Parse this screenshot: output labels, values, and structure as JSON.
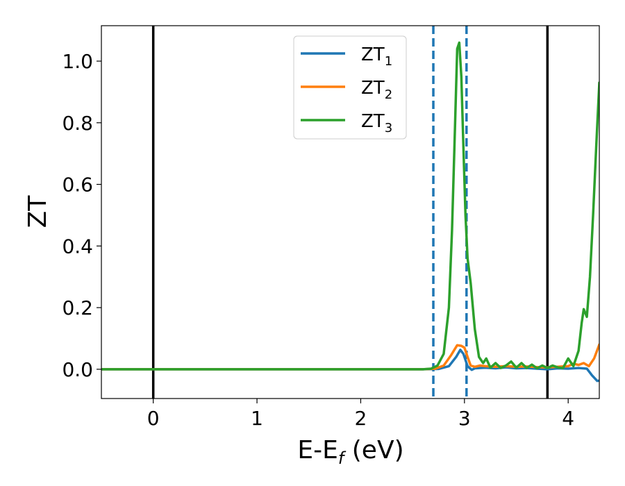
{
  "chart_data": {
    "type": "line",
    "title": "",
    "xlabel": "E-E_f (eV)",
    "ylabel": "ZT",
    "xlabel_parts": {
      "main": "E-E",
      "sub": "f",
      "tail": " (eV)"
    },
    "xlim": [
      -0.5,
      4.3
    ],
    "ylim": [
      -0.095,
      1.115
    ],
    "xticks": [
      0,
      1,
      2,
      3,
      4
    ],
    "xtick_labels": [
      "0",
      "1",
      "2",
      "3",
      "4"
    ],
    "yticks": [
      0.0,
      0.2,
      0.4,
      0.6,
      0.8,
      1.0
    ],
    "ytick_labels": [
      "0.0",
      "0.2",
      "0.4",
      "0.6",
      "0.8",
      "1.0"
    ],
    "grid": false,
    "legend_position": "top-center",
    "vlines": [
      {
        "x": 0.0,
        "style": "solid",
        "color": "#000000"
      },
      {
        "x": 3.8,
        "style": "solid",
        "color": "#000000"
      },
      {
        "x": 2.7,
        "style": "dashed",
        "color": "#1f77b4"
      },
      {
        "x": 3.02,
        "style": "dashed",
        "color": "#1f77b4"
      }
    ],
    "series": [
      {
        "name": "ZT_1",
        "label_main": "ZT",
        "label_sub": "1",
        "color": "#1f77b4",
        "points": [
          [
            -0.5,
            0
          ],
          [
            2.6,
            0
          ],
          [
            2.75,
            0.001
          ],
          [
            2.85,
            0.01
          ],
          [
            2.92,
            0.04
          ],
          [
            2.96,
            0.063
          ],
          [
            2.99,
            0.05
          ],
          [
            3.03,
            0.01
          ],
          [
            3.07,
            -0.002
          ],
          [
            3.1,
            0.003
          ],
          [
            3.2,
            0.005
          ],
          [
            3.3,
            0.003
          ],
          [
            3.4,
            0.006
          ],
          [
            3.5,
            0.003
          ],
          [
            3.6,
            0.004
          ],
          [
            3.7,
            0.002
          ],
          [
            3.8,
            0
          ],
          [
            3.9,
            0.003
          ],
          [
            4.0,
            0.002
          ],
          [
            4.1,
            0.004
          ],
          [
            4.18,
            0.002
          ],
          [
            4.23,
            -0.02
          ],
          [
            4.28,
            -0.038
          ],
          [
            4.3,
            -0.037
          ]
        ]
      },
      {
        "name": "ZT_2",
        "label_main": "ZT",
        "label_sub": "2",
        "color": "#ff7f0e",
        "points": [
          [
            -0.5,
            0
          ],
          [
            2.6,
            0
          ],
          [
            2.72,
            0.002
          ],
          [
            2.8,
            0.012
          ],
          [
            2.87,
            0.045
          ],
          [
            2.93,
            0.078
          ],
          [
            2.97,
            0.076
          ],
          [
            3.0,
            0.07
          ],
          [
            3.03,
            0.04
          ],
          [
            3.06,
            0.012
          ],
          [
            3.1,
            0.008
          ],
          [
            3.15,
            0.012
          ],
          [
            3.2,
            0.01
          ],
          [
            3.3,
            0.008
          ],
          [
            3.4,
            0.01
          ],
          [
            3.5,
            0.008
          ],
          [
            3.6,
            0.009
          ],
          [
            3.7,
            0.007
          ],
          [
            3.8,
            0.006
          ],
          [
            3.9,
            0.008
          ],
          [
            4.0,
            0.01
          ],
          [
            4.05,
            0.018
          ],
          [
            4.1,
            0.014
          ],
          [
            4.15,
            0.02
          ],
          [
            4.2,
            0.01
          ],
          [
            4.25,
            0.035
          ],
          [
            4.3,
            0.08
          ]
        ]
      },
      {
        "name": "ZT_3",
        "label_main": "ZT",
        "label_sub": "3",
        "color": "#2ca02c",
        "points": [
          [
            -0.5,
            0
          ],
          [
            2.6,
            0
          ],
          [
            2.68,
            0.002
          ],
          [
            2.74,
            0.012
          ],
          [
            2.8,
            0.05
          ],
          [
            2.85,
            0.2
          ],
          [
            2.88,
            0.45
          ],
          [
            2.91,
            0.8
          ],
          [
            2.93,
            1.04
          ],
          [
            2.95,
            1.06
          ],
          [
            2.97,
            0.95
          ],
          [
            2.99,
            0.72
          ],
          [
            3.01,
            0.5
          ],
          [
            3.03,
            0.36
          ],
          [
            3.06,
            0.28
          ],
          [
            3.1,
            0.13
          ],
          [
            3.14,
            0.04
          ],
          [
            3.18,
            0.02
          ],
          [
            3.21,
            0.035
          ],
          [
            3.25,
            0.005
          ],
          [
            3.3,
            0.02
          ],
          [
            3.35,
            0.004
          ],
          [
            3.4,
            0.012
          ],
          [
            3.45,
            0.025
          ],
          [
            3.5,
            0.005
          ],
          [
            3.55,
            0.02
          ],
          [
            3.6,
            0.004
          ],
          [
            3.65,
            0.015
          ],
          [
            3.7,
            0.003
          ],
          [
            3.75,
            0.012
          ],
          [
            3.8,
            0.004
          ],
          [
            3.85,
            0.012
          ],
          [
            3.9,
            0.006
          ],
          [
            3.95,
            0.004
          ],
          [
            4.0,
            0.035
          ],
          [
            4.05,
            0.01
          ],
          [
            4.1,
            0.06
          ],
          [
            4.13,
            0.15
          ],
          [
            4.15,
            0.195
          ],
          [
            4.18,
            0.17
          ],
          [
            4.21,
            0.3
          ],
          [
            4.24,
            0.5
          ],
          [
            4.27,
            0.72
          ],
          [
            4.3,
            0.93
          ]
        ]
      }
    ]
  }
}
